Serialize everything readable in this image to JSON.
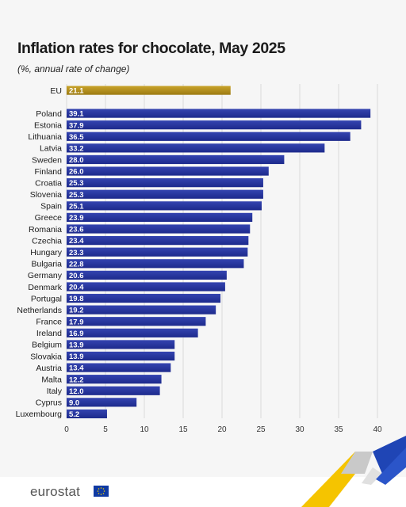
{
  "header": {
    "title": "Inflation rates for chocolate, May 2025",
    "subtitle": "(%, annual rate of change)"
  },
  "brand": {
    "logo_text": "eurostat",
    "colors": {
      "bar": "#2a3aa0",
      "bar_dark": "#1a2580",
      "highlight": "#b5921f",
      "gridline": "#d5d5d5"
    }
  },
  "chart_data": {
    "type": "bar",
    "orientation": "horizontal",
    "title": "Inflation rates for chocolate, May 2025",
    "subtitle": "(%, annual rate of change)",
    "xlim": [
      0,
      40
    ],
    "x_ticks": [
      0,
      5,
      10,
      15,
      20,
      25,
      30,
      35,
      40
    ],
    "grid": "vertical",
    "highlight": {
      "category": "EU",
      "value": 21.1,
      "color": "#b5921f"
    },
    "categories": [
      "Poland",
      "Estonia",
      "Lithuania",
      "Latvia",
      "Sweden",
      "Finland",
      "Croatia",
      "Slovenia",
      "Spain",
      "Greece",
      "Romania",
      "Czechia",
      "Hungary",
      "Bulgaria",
      "Germany",
      "Denmark",
      "Portugal",
      "Netherlands",
      "France",
      "Ireland",
      "Belgium",
      "Slovakia",
      "Austria",
      "Malta",
      "Italy",
      "Cyprus",
      "Luxembourg"
    ],
    "values": [
      39.1,
      37.9,
      36.5,
      33.2,
      28.0,
      26.0,
      25.3,
      25.3,
      25.1,
      23.9,
      23.6,
      23.4,
      23.3,
      22.8,
      20.6,
      20.4,
      19.8,
      19.2,
      17.9,
      16.9,
      13.9,
      13.9,
      13.4,
      12.2,
      12.0,
      9.0,
      5.2
    ],
    "value_labels": [
      "39.1",
      "37.9",
      "36.5",
      "33.2",
      "28.0",
      "26.0",
      "25.3",
      "25.3",
      "25.1",
      "23.9",
      "23.6",
      "23.4",
      "23.3",
      "22.8",
      "20.6",
      "20.4",
      "19.8",
      "19.2",
      "17.9",
      "16.9",
      "13.9",
      "13.9",
      "13.4",
      "12.2",
      "12.0",
      "9.0",
      "5.2"
    ],
    "highlight_label": "21.1"
  }
}
